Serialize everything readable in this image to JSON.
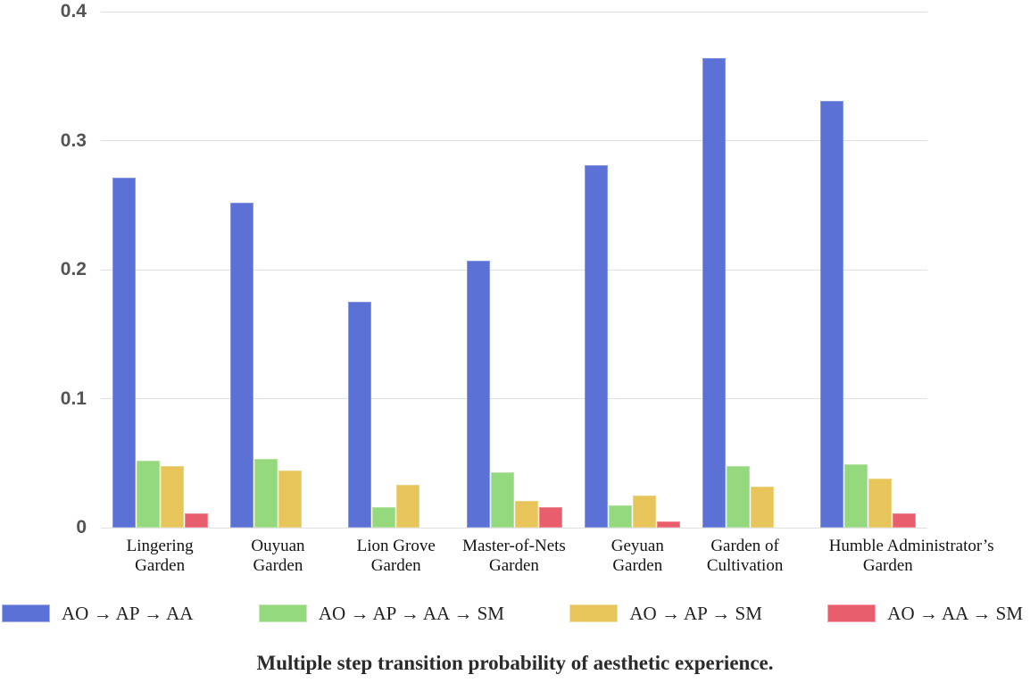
{
  "caption": "Multiple step transition probability of aesthetic experience.",
  "colors": {
    "series_blue": "#5b71d6",
    "series_green": "#95d97e",
    "series_yellow": "#e7c55b",
    "series_red": "#e85e6d",
    "gridline": "#e0e0e0",
    "axis_label": "#545454",
    "label_text": "#141414"
  },
  "chart_data": {
    "type": "bar",
    "title": "Multiple step transition probability of aesthetic experience.",
    "xlabel": "",
    "ylabel": "",
    "ylim": [
      0,
      0.4
    ],
    "grid": true,
    "legend_position": "bottom",
    "y_ticks": [
      {
        "label": "0.4",
        "value": 0.4
      },
      {
        "label": "0.3",
        "value": 0.3
      },
      {
        "label": "0.2",
        "value": 0.2
      },
      {
        "label": "0.1",
        "value": 0.1
      },
      {
        "label": "0",
        "value": 0
      }
    ],
    "categories": [
      "Lingering Garden",
      "Ouyuan Garden",
      "Lion Grove Garden",
      "Master-of-Nets Garden",
      "Geyuan Garden",
      "Garden of Cultivation",
      "Humble Administrator’s Garden"
    ],
    "category_lines": [
      [
        "Lingering",
        "Garden"
      ],
      [
        "Ouyuan",
        "Garden"
      ],
      [
        "Lion Grove",
        "Garden"
      ],
      [
        "Master-of-Nets",
        "Garden"
      ],
      [
        "Geyuan",
        "Garden"
      ],
      [
        "Garden of",
        "Cultivation"
      ],
      [
        "Humble Administrator’s",
        "Garden"
      ]
    ],
    "series": [
      {
        "name": "AO → AP → AA",
        "color": "#5b71d6",
        "values": [
          0.271,
          0.252,
          0.175,
          0.207,
          0.281,
          0.364,
          0.331
        ]
      },
      {
        "name": "AO → AP → AA → SM",
        "color": "#95d97e",
        "values": [
          0.052,
          0.053,
          0.016,
          0.043,
          0.017,
          0.048,
          0.049
        ]
      },
      {
        "name": "AO → AP → SM",
        "color": "#e7c55b",
        "values": [
          0.048,
          0.044,
          0.033,
          0.021,
          0.025,
          0.032,
          0.038
        ]
      },
      {
        "name": "AO → AA → SM",
        "color": "#e85e6d",
        "values": [
          0.011,
          0,
          0,
          0.016,
          0.005,
          0,
          0.011
        ]
      }
    ]
  }
}
